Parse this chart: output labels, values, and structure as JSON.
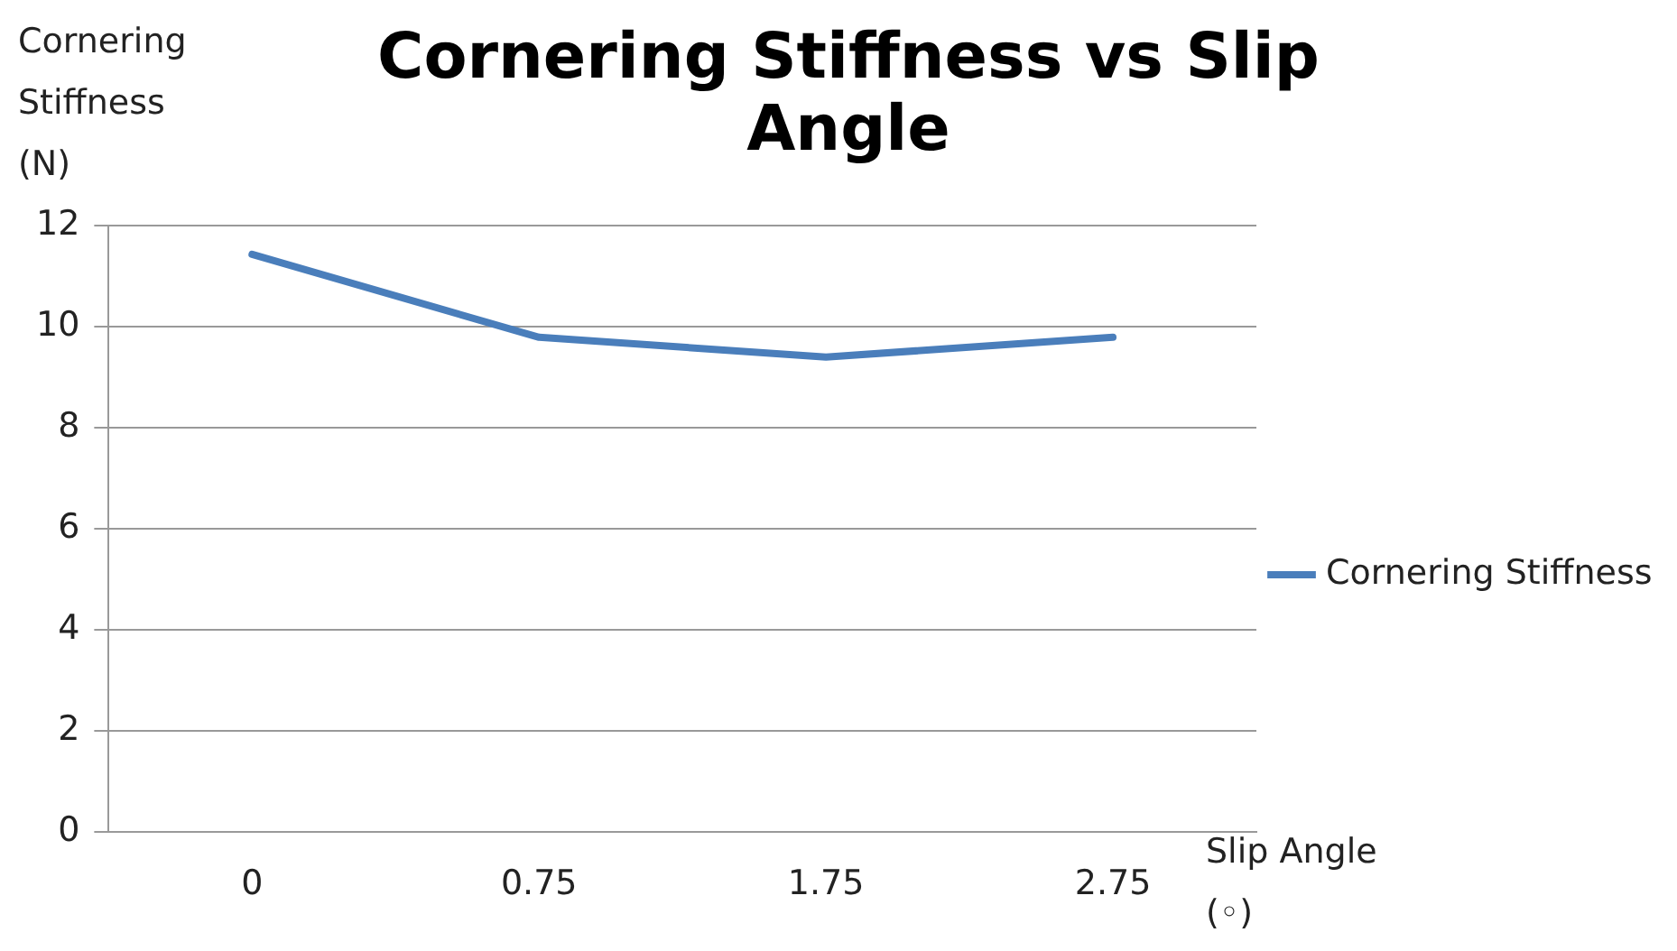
{
  "chart_data": {
    "type": "line",
    "title": "Cornering Stiffness vs Slip Angle",
    "ylabel": "Cornering Stiffness (N)",
    "xlabel": "Slip Angle (◦)",
    "categories": [
      "0",
      "0.75",
      "1.75",
      "2.75"
    ],
    "series": [
      {
        "name": "Cornering Stiffness",
        "color": "#4a7ebb",
        "values": [
          11.43,
          9.79,
          9.4,
          9.79
        ]
      }
    ],
    "ylim": [
      0,
      12
    ],
    "yticks": [
      0,
      2,
      4,
      6,
      8,
      10,
      12
    ],
    "grid": "y",
    "legend": "right",
    "marker": "none",
    "line_style": "solid"
  }
}
